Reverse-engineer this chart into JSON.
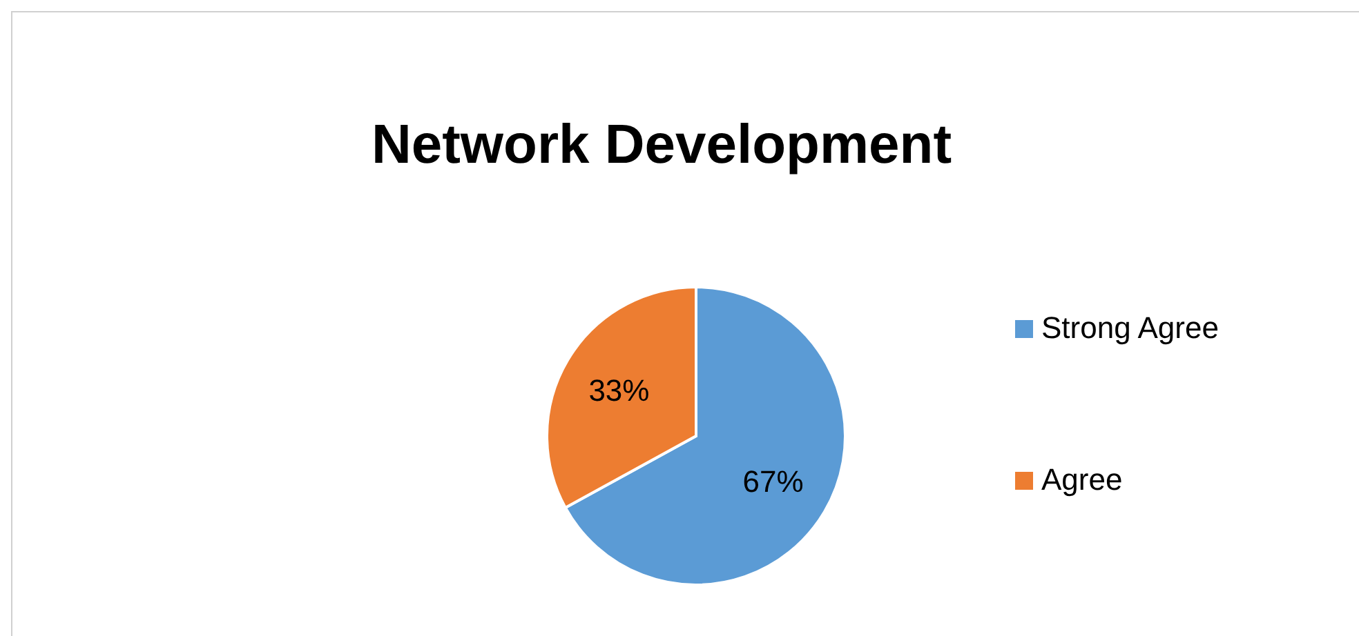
{
  "chart_data": {
    "type": "pie",
    "title": "Network Development",
    "categories": [
      "Strong Agree",
      "Agree"
    ],
    "values": [
      67,
      33
    ],
    "colors": [
      "#5b9bd5",
      "#ed7d31"
    ],
    "value_labels": [
      "67%",
      "33%"
    ],
    "legend": "right"
  }
}
